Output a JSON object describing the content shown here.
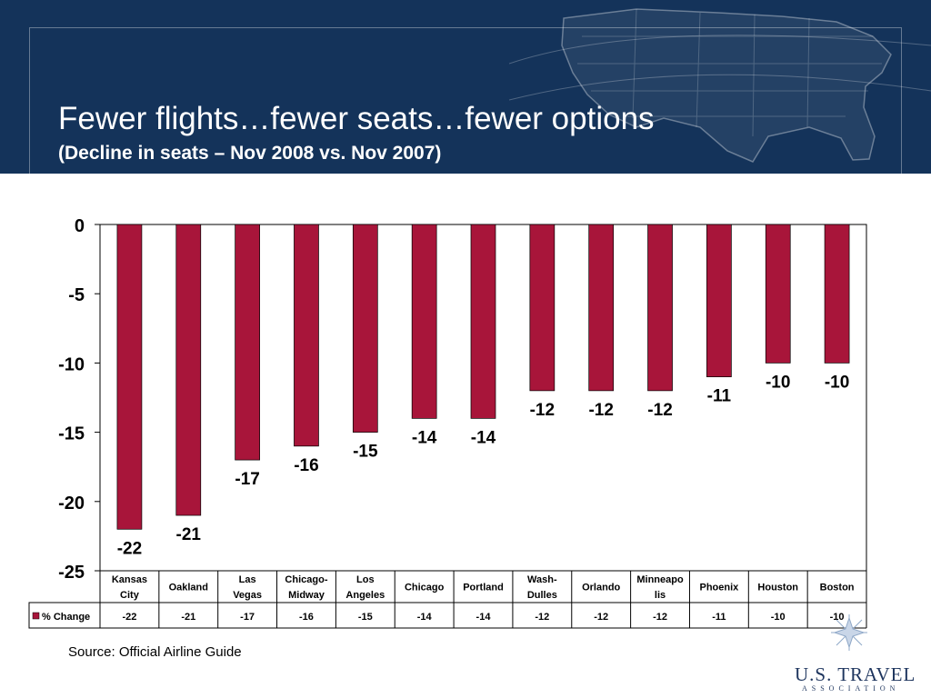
{
  "slide": {
    "title": "Fewer flights…fewer seats…fewer options",
    "subtitle": "(Decline in seats – Nov 2008 vs. Nov 2007)",
    "source": "Source:  Official Airline Guide",
    "logo_text": "U.S. TRAVEL",
    "logo_subtext": "ASSOCIATION"
  },
  "colors": {
    "header_bg": "#14335a",
    "bar": "#a8153a"
  },
  "chart_data": {
    "type": "bar",
    "categories": [
      [
        "Kansas",
        "City"
      ],
      [
        "Oakland"
      ],
      [
        "Las",
        "Vegas"
      ],
      [
        "Chicago-",
        "Midway"
      ],
      [
        "Los",
        "Angeles"
      ],
      [
        "Chicago"
      ],
      [
        "Portland"
      ],
      [
        "Wash-",
        "Dulles"
      ],
      [
        "Orlando"
      ],
      [
        "Minneapo",
        "lis"
      ],
      [
        "Phoenix"
      ],
      [
        "Houston"
      ],
      [
        "Boston"
      ]
    ],
    "series": [
      {
        "name": "% Change",
        "values": [
          -22,
          -21,
          -17,
          -16,
          -15,
          -14,
          -14,
          -12,
          -12,
          -12,
          -11,
          -10,
          -10
        ]
      }
    ],
    "ylim": [
      -25,
      0
    ],
    "yticks": [
      0,
      -5,
      -10,
      -15,
      -20,
      -25
    ],
    "grid": false,
    "legend": "data-table-left",
    "data_table": true
  }
}
